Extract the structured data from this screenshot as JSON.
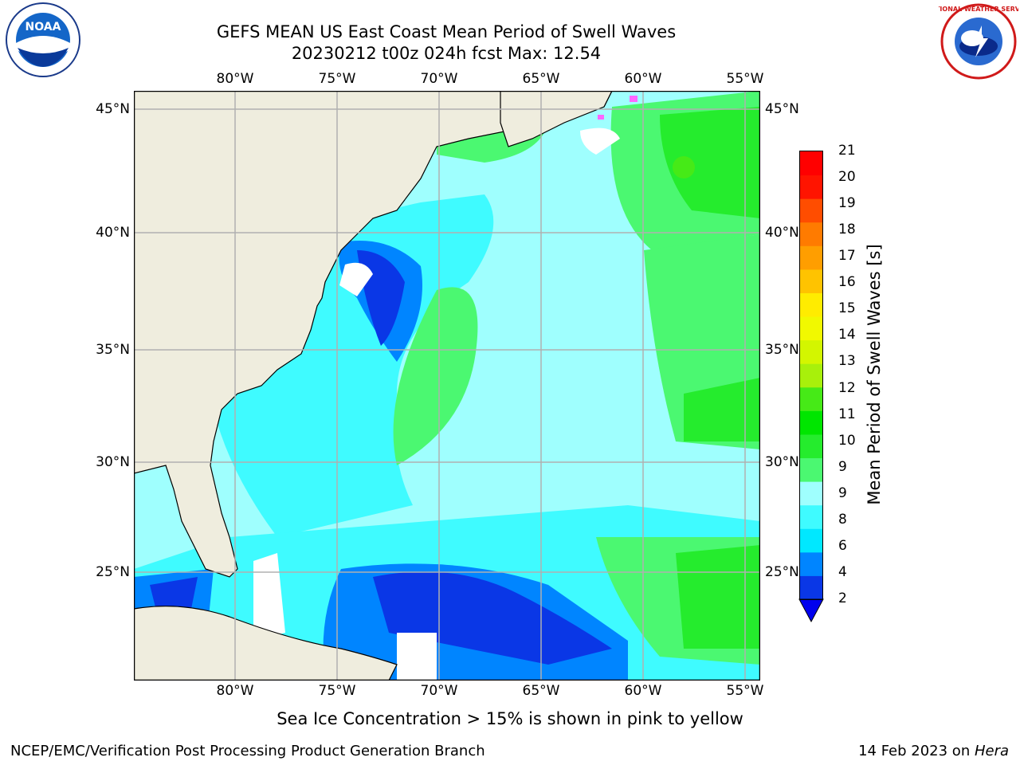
{
  "header": {
    "title_line1": "GEFS MEAN US East Coast Mean Period of Swell Waves",
    "title_line2": "20230212 t00z 024h fcst   Max: 12.54"
  },
  "logos": {
    "left": {
      "icon": "noaa-logo",
      "text": "NOAA"
    },
    "right": {
      "icon": "national-weather-service-logo",
      "text": "NATIONAL WEATHER SERVICE"
    }
  },
  "map": {
    "lon_ticks_top": [
      "80°W",
      "75°W",
      "70°W",
      "65°W",
      "60°W",
      "55°W"
    ],
    "lon_ticks_bottom": [
      "80°W",
      "75°W",
      "70°W",
      "65°W",
      "60°W",
      "55°W"
    ],
    "lat_ticks_left": [
      "45°N",
      "40°N",
      "35°N",
      "30°N",
      "25°N"
    ],
    "lat_ticks_right": [
      "45°N",
      "40°N",
      "35°N",
      "30°N",
      "25°N"
    ],
    "colors": {
      "land": "#efedde",
      "ocean_base": "#9ffffe",
      "grid": "#b0b0b0"
    }
  },
  "colorbar": {
    "label": "Mean Period of Swell Waves [s]",
    "ticks": [
      "2",
      "4",
      "6",
      "8",
      "9",
      "9",
      "10",
      "11",
      "12",
      "13",
      "14",
      "15",
      "16",
      "17",
      "18",
      "19",
      "20",
      "21"
    ],
    "colors": [
      "#0a37e6",
      "#0085ff",
      "#00e8ff",
      "#3ffbff",
      "#9ffffe",
      "#4bf871",
      "#25ec2d",
      "#00e600",
      "#46ea17",
      "#a8f00b",
      "#d3f600",
      "#f1f900",
      "#ffec00",
      "#ffc300",
      "#ff9e00",
      "#ff7b00",
      "#ff4d00",
      "#ff1400",
      "#ff0000"
    ],
    "underflow_color": "#0000ee"
  },
  "caption": "Sea Ice Concentration > 15% is shown in pink to yellow",
  "footer": {
    "left": "NCEP/EMC/Verification Post Processing Product Generation Branch",
    "right_prefix": "14 Feb 2023 on ",
    "right_host": "Hera"
  }
}
